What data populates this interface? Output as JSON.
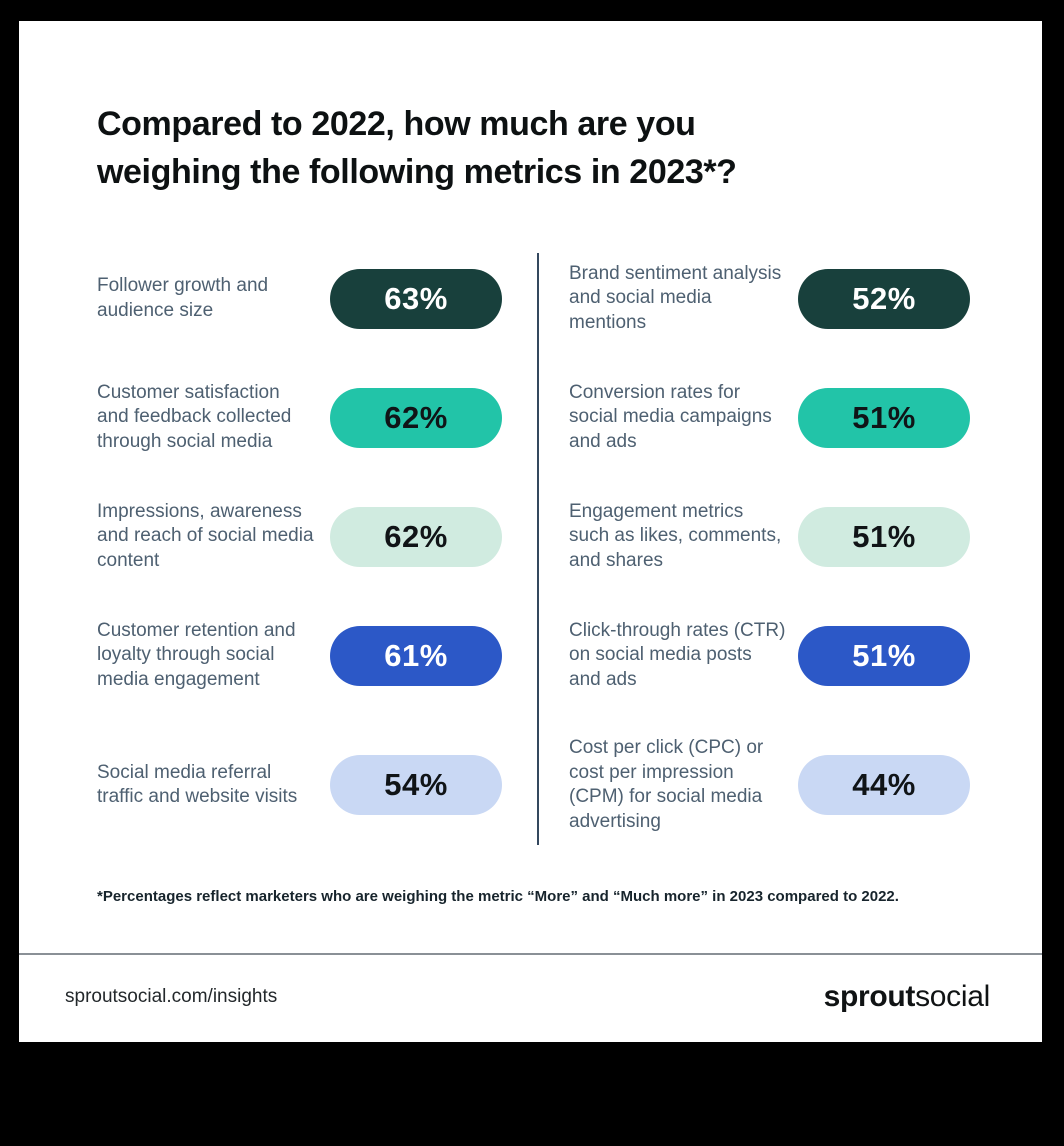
{
  "chart_data": {
    "type": "table",
    "title": "Compared to 2022, how much are you weighing the following metrics in 2023*?",
    "title_lines": [
      "Compared to 2022, how much are you",
      "weighing the following metrics in 2023*?"
    ],
    "unit": "percent",
    "columns": [
      "left",
      "right"
    ],
    "items": [
      {
        "column": "left",
        "label": "Follower growth and audience size",
        "value": 63,
        "display": "63%",
        "pill_bg": "#18403c",
        "pill_fg": "#ffffff"
      },
      {
        "column": "left",
        "label": "Customer satisfaction and feedback collected through social media",
        "value": 62,
        "display": "62%",
        "pill_bg": "#22c4a8",
        "pill_fg": "#101417"
      },
      {
        "column": "left",
        "label": "Impressions, awareness and reach of social media content",
        "value": 62,
        "display": "62%",
        "pill_bg": "#d0ebe0",
        "pill_fg": "#101417"
      },
      {
        "column": "left",
        "label": "Customer retention and loyalty through social media engagement",
        "value": 61,
        "display": "61%",
        "pill_bg": "#2c58c7",
        "pill_fg": "#ffffff"
      },
      {
        "column": "left",
        "label": "Social media referral traffic and website visits",
        "value": 54,
        "display": "54%",
        "pill_bg": "#c9d8f4",
        "pill_fg": "#101417"
      },
      {
        "column": "right",
        "label": "Brand sentiment analysis and social media mentions",
        "value": 52,
        "display": "52%",
        "pill_bg": "#18403c",
        "pill_fg": "#ffffff"
      },
      {
        "column": "right",
        "label": "Conversion rates for social media campaigns and ads",
        "value": 51,
        "display": "51%",
        "pill_bg": "#22c4a8",
        "pill_fg": "#101417"
      },
      {
        "column": "right",
        "label": "Engagement metrics such as likes, comments, and shares",
        "value": 51,
        "display": "51%",
        "pill_bg": "#d0ebe0",
        "pill_fg": "#101417"
      },
      {
        "column": "right",
        "label": "Click-through rates (CTR) on social media posts and ads",
        "value": 51,
        "display": "51%",
        "pill_bg": "#2c58c7",
        "pill_fg": "#ffffff"
      },
      {
        "column": "right",
        "label": "Cost per click (CPC) or cost per impression (CPM) for social media advertising",
        "value": 44,
        "display": "44%",
        "pill_bg": "#c9d8f4",
        "pill_fg": "#101417"
      }
    ],
    "footnote": "*Percentages reflect marketers who are weighing the metric “More” and “Much more” in 2023 compared to 2022."
  },
  "footer": {
    "url": "sproutsocial.com/insights",
    "brand": {
      "bold": "sprout",
      "light": "social"
    }
  },
  "palette": {
    "page_background": "#000000",
    "card_background": "#ffffff",
    "title_text": "#0d1112",
    "label_text": "#4e6071",
    "column_divider": "#34485e",
    "dark_teal": "#18403c",
    "teal": "#22c4a8",
    "mint": "#d0ebe0",
    "blue": "#2c58c7",
    "periwinkle": "#c9d8f4"
  }
}
